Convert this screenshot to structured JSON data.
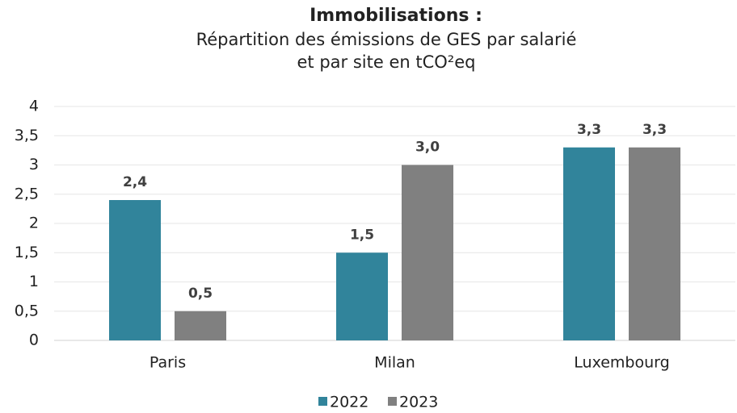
{
  "chart_data": {
    "type": "bar",
    "title": "Immobilisations :",
    "subtitle": [
      "Répartition des émissions de GES par salarié",
      "et par site en tCO²eq"
    ],
    "categories": [
      "Paris",
      "Milan",
      "Luxembourg"
    ],
    "series": [
      {
        "name": "2022",
        "color": "#31849b",
        "values": [
          2.4,
          1.5,
          3.3
        ],
        "value_labels": [
          "2,4",
          "1,5",
          "3,3"
        ]
      },
      {
        "name": "2023",
        "color": "#808080",
        "values": [
          0.5,
          3.0,
          3.3
        ],
        "value_labels": [
          "0,5",
          "3,0",
          "3,3"
        ]
      }
    ],
    "ylim": [
      0,
      4
    ],
    "yticks": [
      0,
      {
        "value": 0.5,
        "label": "0,5"
      },
      1,
      {
        "value": 1.5,
        "label": "1,5"
      },
      2,
      {
        "value": 2.5,
        "label": "2,5"
      },
      3,
      {
        "value": 3.5,
        "label": "3,5"
      },
      4
    ],
    "grid": true,
    "legend": "bottom"
  }
}
